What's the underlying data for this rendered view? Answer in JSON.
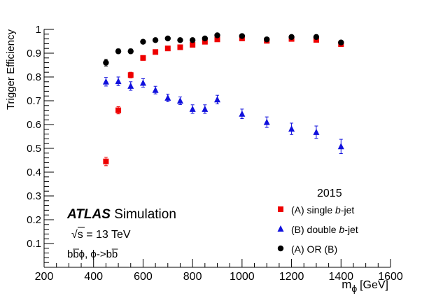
{
  "chart_data": {
    "type": "scatter",
    "title": "",
    "year_label": "2015",
    "experiment": "ATLAS",
    "experiment_suffix": "Simulation",
    "energy_label": "√s  = 13 TeV",
    "process_label": "bb̅ϕ,  ϕ->bb̅",
    "xlabel": "m",
    "xlabel_sub": "ϕ",
    "xlabel_unit": "[GeV]",
    "ylabel": "Trigger Efficiency",
    "xlim": [
      200,
      1600
    ],
    "ylim": [
      0,
      1
    ],
    "xticks": [
      200,
      400,
      600,
      800,
      1000,
      1200,
      1400,
      1600
    ],
    "yticks": [
      0.1,
      0.2,
      0.3,
      0.4,
      0.5,
      0.6,
      0.7,
      0.8,
      0.9,
      1
    ],
    "ytick_labels": [
      "0.1",
      "0.2",
      "0.3",
      "0.4",
      "0.5",
      "0.6",
      "0.7",
      "0.8",
      "0.9",
      "1"
    ],
    "legend_position": "bottom-right",
    "series": [
      {
        "name": "(A) single b-jet",
        "legend_prefix": "(A) single ",
        "legend_italic": "b",
        "legend_suffix": "-jet",
        "marker": "square",
        "color": "#ee0000",
        "x": [
          450,
          500,
          550,
          600,
          650,
          700,
          750,
          800,
          850,
          900,
          1000,
          1100,
          1200,
          1300,
          1400
        ],
        "y": [
          0.445,
          0.66,
          0.808,
          0.88,
          0.905,
          0.92,
          0.925,
          0.935,
          0.948,
          0.958,
          0.962,
          0.952,
          0.96,
          0.956,
          0.938
        ],
        "err": [
          0.018,
          0.015,
          0.012,
          0.01,
          0.008,
          0.007,
          0.007,
          0.006,
          0.006,
          0.005,
          0.005,
          0.006,
          0.006,
          0.006,
          0.008
        ]
      },
      {
        "name": "(B) double b-jet",
        "legend_prefix": "(B) double ",
        "legend_italic": "b",
        "legend_suffix": "-jet",
        "marker": "triangle",
        "color": "#1010dd",
        "x": [
          450,
          500,
          550,
          600,
          650,
          700,
          750,
          800,
          850,
          900,
          1000,
          1100,
          1200,
          1300,
          1400
        ],
        "y": [
          0.78,
          0.782,
          0.762,
          0.775,
          0.745,
          0.712,
          0.7,
          0.665,
          0.665,
          0.705,
          0.645,
          0.61,
          0.582,
          0.568,
          0.508
        ],
        "err": [
          0.018,
          0.018,
          0.018,
          0.018,
          0.016,
          0.016,
          0.016,
          0.018,
          0.018,
          0.018,
          0.02,
          0.022,
          0.024,
          0.026,
          0.03
        ]
      },
      {
        "name": "(A) OR (B)",
        "legend_prefix": "(A) OR (B)",
        "legend_italic": "",
        "legend_suffix": "",
        "marker": "circle",
        "color": "#000000",
        "x": [
          450,
          500,
          550,
          600,
          650,
          700,
          750,
          800,
          850,
          900,
          1000,
          1100,
          1200,
          1300,
          1400
        ],
        "y": [
          0.86,
          0.908,
          0.908,
          0.948,
          0.955,
          0.962,
          0.955,
          0.955,
          0.962,
          0.975,
          0.972,
          0.958,
          0.968,
          0.968,
          0.945
        ],
        "err": [
          0.014,
          0.01,
          0.01,
          0.006,
          0.005,
          0.005,
          0.005,
          0.005,
          0.005,
          0.004,
          0.004,
          0.005,
          0.005,
          0.005,
          0.008
        ]
      }
    ]
  }
}
